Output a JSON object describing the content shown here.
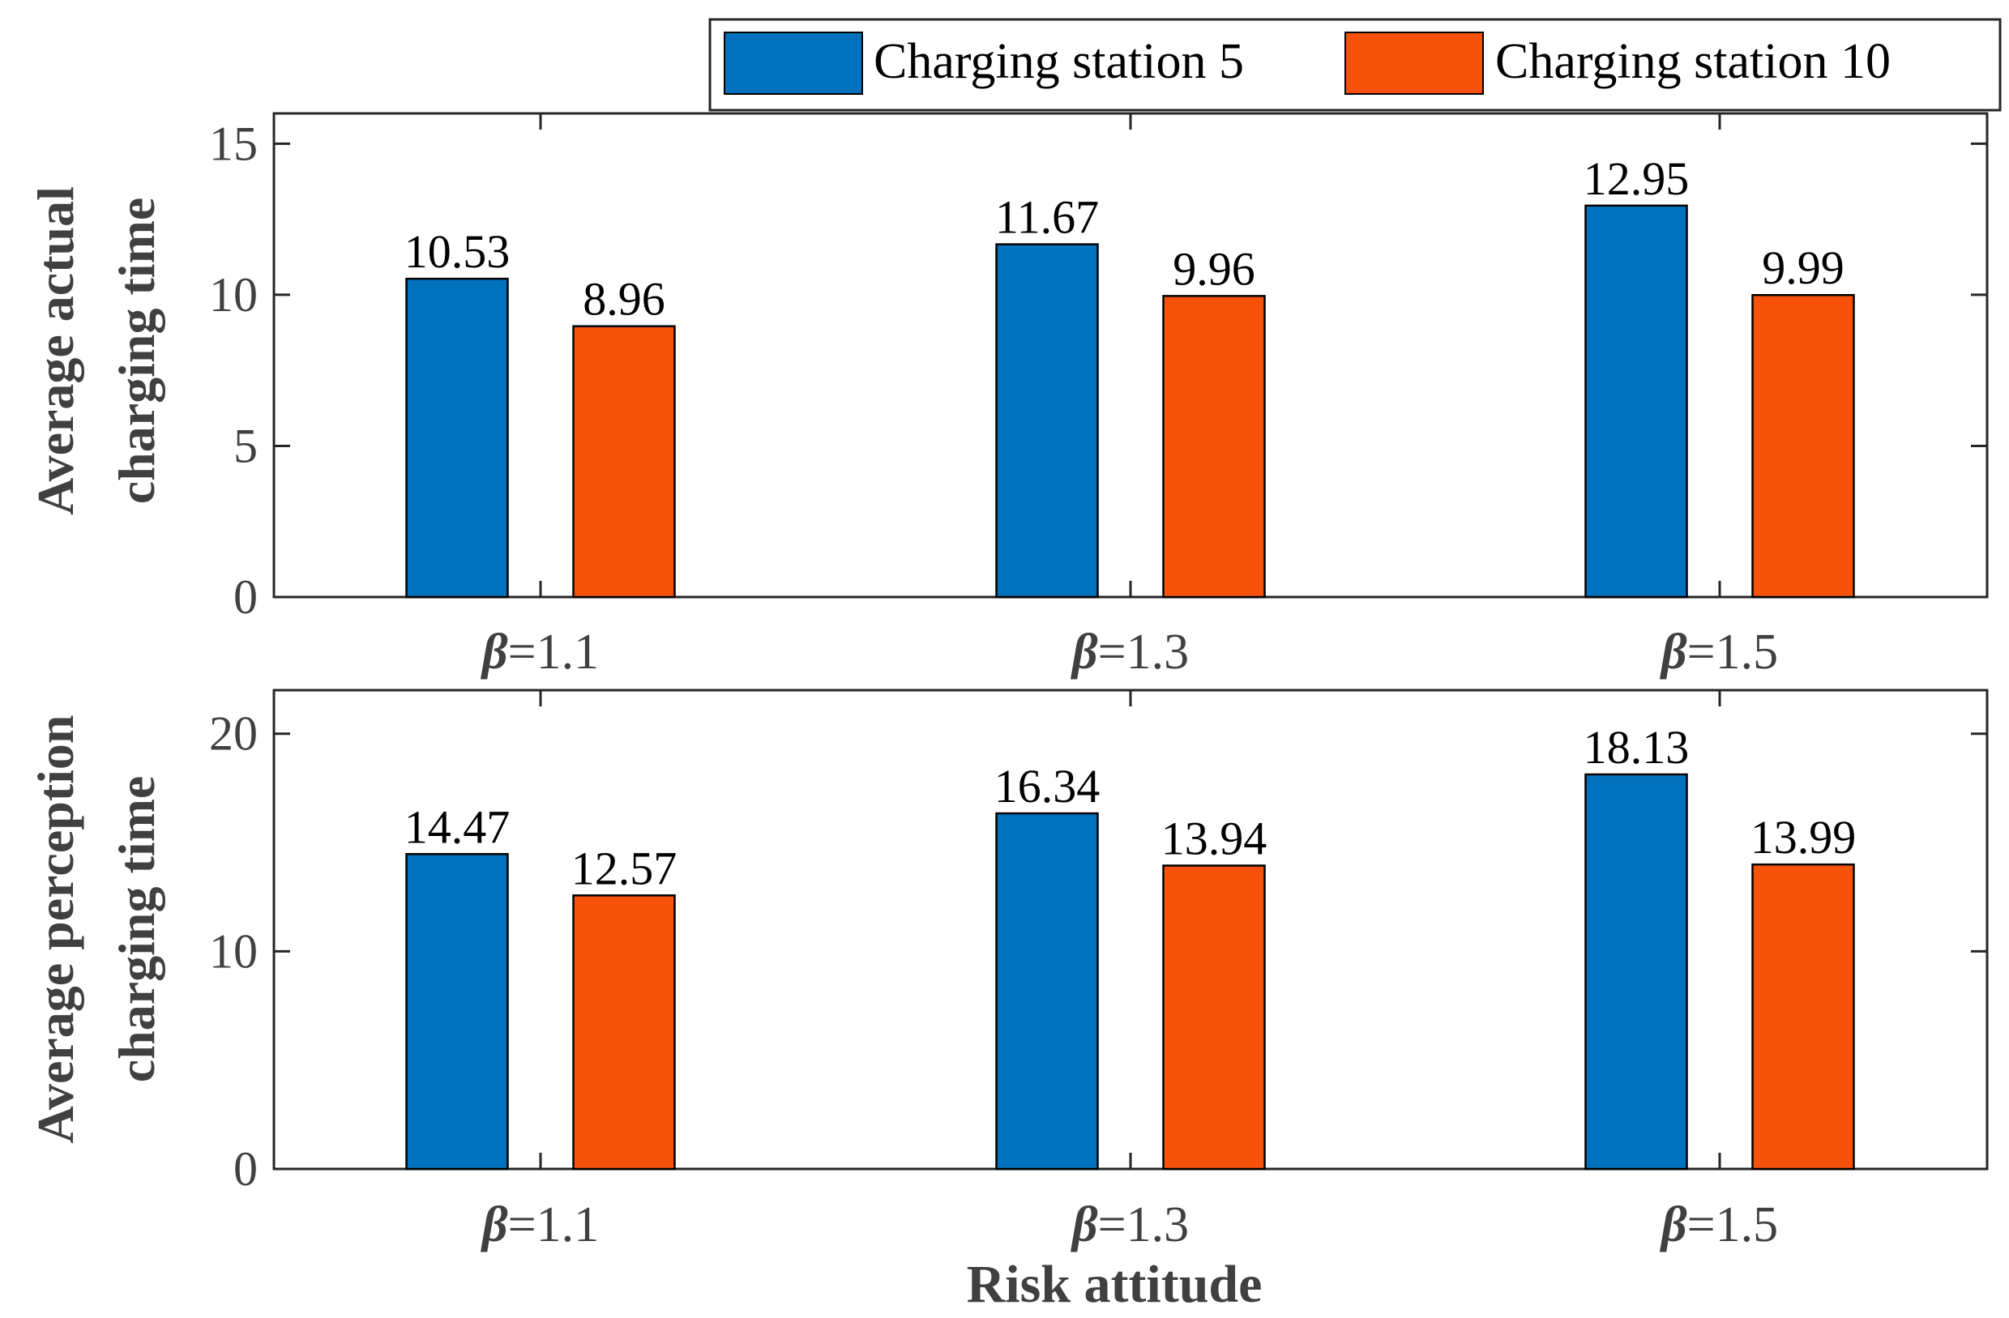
{
  "colors": {
    "series_1": "#0072BD",
    "series_2": "#F7520B",
    "axis": "#262626",
    "text": "#000000",
    "tick_text": "#404040"
  },
  "legend": {
    "items": [
      "Charging station 5",
      "Charging station 10"
    ],
    "placement": "top-right"
  },
  "xlabel": "Risk attitude",
  "chart_data": [
    {
      "type": "bar",
      "ylabel_lines": [
        "Average actual",
        "charging time"
      ],
      "categories": [
        {
          "symbol": "β",
          "suffix": "=1.1"
        },
        {
          "symbol": "β",
          "suffix": "=1.3"
        },
        {
          "symbol": "β",
          "suffix": "=1.5"
        }
      ],
      "series": [
        {
          "name": "Charging station 5",
          "values": [
            10.53,
            11.67,
            12.95
          ],
          "labels": [
            "10.53",
            "11.67",
            "12.95"
          ]
        },
        {
          "name": "Charging station 10",
          "values": [
            8.96,
            9.96,
            9.99
          ],
          "labels": [
            "8.96",
            "9.96",
            "9.99"
          ]
        }
      ],
      "ylim": [
        0,
        16
      ],
      "yticks": [
        0,
        5,
        10,
        15
      ],
      "grid": false
    },
    {
      "type": "bar",
      "ylabel_lines": [
        "Average perception",
        "charging time"
      ],
      "categories": [
        {
          "symbol": "β",
          "suffix": "=1.1"
        },
        {
          "symbol": "β",
          "suffix": "=1.3"
        },
        {
          "symbol": "β",
          "suffix": "=1.5"
        }
      ],
      "series": [
        {
          "name": "Charging station 5",
          "values": [
            14.47,
            16.34,
            18.13
          ],
          "labels": [
            "14.47",
            "16.34",
            "18.13"
          ]
        },
        {
          "name": "Charging station 10",
          "values": [
            12.57,
            13.94,
            13.99
          ],
          "labels": [
            "12.57",
            "13.94",
            "13.99"
          ]
        }
      ],
      "ylim": [
        0,
        22
      ],
      "yticks": [
        0,
        10,
        20
      ],
      "grid": false
    }
  ]
}
